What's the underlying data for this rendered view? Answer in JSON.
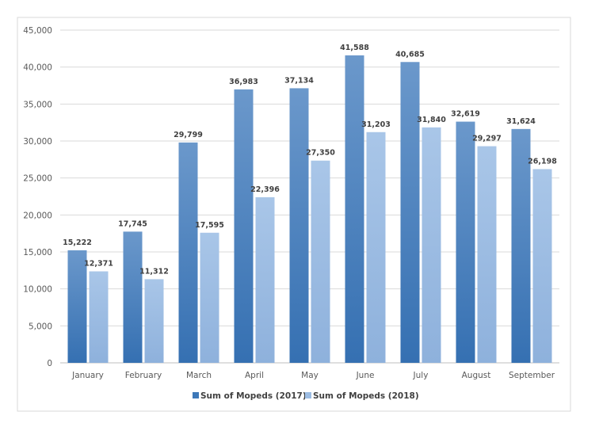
{
  "chart_data": {
    "type": "bar",
    "categories": [
      "January",
      "February",
      "March",
      "April",
      "May",
      "June",
      "July",
      "August",
      "September"
    ],
    "series": [
      {
        "name": "Sum of Mopeds (2017)",
        "values": [
          15222,
          17745,
          29799,
          36983,
          37134,
          41588,
          40685,
          32619,
          31624
        ],
        "color": "#3d78b8"
      },
      {
        "name": "Sum of Mopeds (2018)",
        "values": [
          12371,
          11312,
          17595,
          22396,
          27350,
          31203,
          31840,
          29297,
          26198
        ],
        "color": "#9dbde3"
      }
    ],
    "value_labels": [
      [
        "15,222",
        "17,745",
        "29,799",
        "36,983",
        "37,134",
        "41,588",
        "40,685",
        "32,619",
        "31,624"
      ],
      [
        "12,371",
        "11,312",
        "17,595",
        "22,396",
        "27,350",
        "31,203",
        "31,840",
        "29,297",
        "26,198"
      ]
    ],
    "yticks": [
      "0",
      "5,000",
      "10,000",
      "15,000",
      "20,000",
      "25,000",
      "30,000",
      "35,000",
      "40,000",
      "45,000"
    ],
    "ylim": [
      0,
      45000
    ],
    "grid": true,
    "legend": "bottom",
    "title": "",
    "xlabel": "",
    "ylabel": ""
  }
}
